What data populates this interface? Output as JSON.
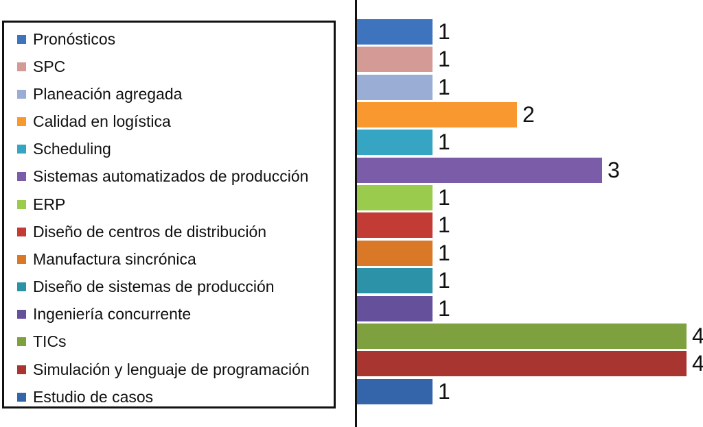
{
  "chart_data": {
    "type": "bar",
    "orientation": "horizontal",
    "title": "",
    "xlabel": "",
    "ylabel": "",
    "xlim": [
      0,
      4
    ],
    "grid": false,
    "legend_position": "left",
    "value_labels_shown": true,
    "categories": [
      "Pronósticos",
      "SPC",
      "Planeación agregada",
      "Calidad en logística",
      "Scheduling",
      "Sistemas automatizados de producción",
      "ERP",
      "Diseño de centros de distribución",
      "Manufactura sincrónica",
      "Diseño de sistemas de producción",
      "Ingeniería concurrente",
      "TICs",
      "Simulación y lenguaje de programación",
      "Estudio de casos"
    ],
    "values": [
      1,
      1,
      1,
      2,
      1,
      3,
      1,
      1,
      1,
      1,
      1,
      4,
      4,
      1
    ],
    "colors": [
      "#3E73BE",
      "#D49A96",
      "#9AADD5",
      "#F9982F",
      "#36A5C3",
      "#7A5CA9",
      "#9BCB4C",
      "#C23B35",
      "#D97928",
      "#2C92A7",
      "#65509C",
      "#7EA03E",
      "#A93531",
      "#3465AA"
    ]
  },
  "legend": {
    "border_color": "#111111",
    "items": [
      {
        "label": "Pronósticos",
        "color": "#3E73BE"
      },
      {
        "label": "SPC",
        "color": "#D49A96"
      },
      {
        "label": "Planeación agregada",
        "color": "#9AADD5"
      },
      {
        "label": "Calidad en logística",
        "color": "#F9982F"
      },
      {
        "label": "Scheduling",
        "color": "#36A5C3"
      },
      {
        "label": "Sistemas automatizados de producción",
        "color": "#7A5CA9"
      },
      {
        "label": "ERP",
        "color": "#9BCB4C"
      },
      {
        "label": "Diseño de centros de distribución",
        "color": "#C23B35"
      },
      {
        "label": "Manufactura sincrónica",
        "color": "#D97928"
      },
      {
        "label": "Diseño de sistemas de producción",
        "color": "#2C92A7"
      },
      {
        "label": "Ingeniería concurrente",
        "color": "#65509C"
      },
      {
        "label": "TICs",
        "color": "#7EA03E"
      },
      {
        "label": "Simulación y lenguaje de programación",
        "color": "#A93531"
      },
      {
        "label": "Estudio de casos",
        "color": "#3465AA"
      }
    ]
  }
}
